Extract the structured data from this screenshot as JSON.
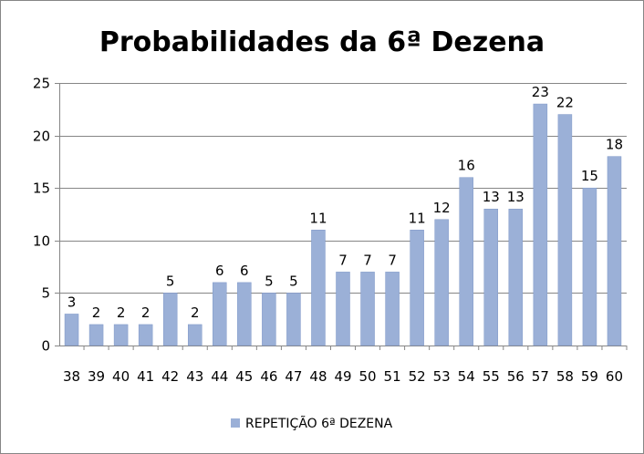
{
  "chart_data": {
    "type": "bar",
    "title": "Probabilidades da 6ª Dezena",
    "xlabel": "",
    "ylabel": "",
    "categories": [
      "38",
      "39",
      "40",
      "41",
      "42",
      "43",
      "44",
      "45",
      "46",
      "47",
      "48",
      "49",
      "50",
      "51",
      "52",
      "53",
      "54",
      "55",
      "56",
      "57",
      "58",
      "59",
      "60"
    ],
    "series": [
      {
        "name": "REPETIÇÃO 6ª DEZENA",
        "values": [
          3,
          2,
          2,
          2,
          5,
          2,
          6,
          6,
          5,
          5,
          11,
          7,
          7,
          7,
          11,
          12,
          16,
          13,
          13,
          23,
          22,
          15,
          18
        ]
      }
    ],
    "yticks": [
      "0",
      "5",
      "10",
      "15",
      "20",
      "25"
    ],
    "ylim": [
      0,
      25
    ],
    "grid": true,
    "legend": "bottom",
    "data_labels": true,
    "colors": {
      "bar": "#9bb0d7",
      "bar_edge": "#7f98c8",
      "grid": "#868686"
    }
  }
}
